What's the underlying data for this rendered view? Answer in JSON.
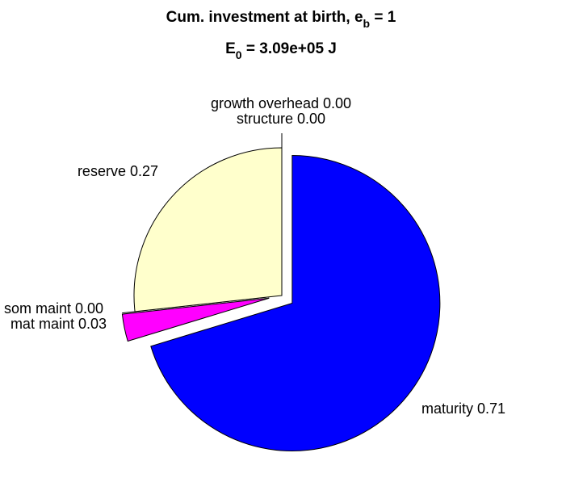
{
  "chart_data": {
    "type": "pie",
    "title": {
      "text": "Cum. investment at birth, e",
      "sub": "b",
      "rest": " = 1"
    },
    "subtitle": {
      "text": "E",
      "sub": "0",
      "rest": " = 3.09e+05 J"
    },
    "values": [
      0.71,
      0.03,
      0.0,
      0.27,
      0.0,
      0.0
    ],
    "value_labels": [
      "maturity 0.71",
      "mat maint 0.03",
      "som maint 0.00",
      "reserve 0.27",
      "structure 0.00",
      "growth overhead 0.00"
    ],
    "colors": [
      "#0000ff",
      "#ff00ff",
      "#ff0000",
      "#ffffcc",
      "#ffff00",
      "#00ff00"
    ],
    "explode": [
      1,
      1,
      1,
      0,
      0,
      0
    ]
  }
}
